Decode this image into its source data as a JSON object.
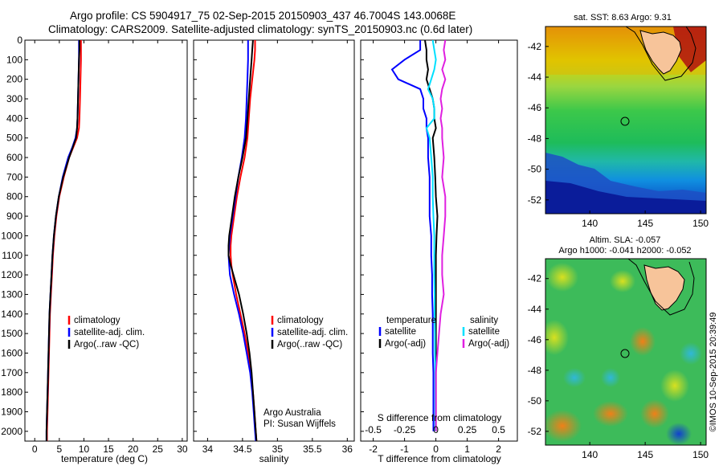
{
  "title_line1": "Argo profile: CS 5904917_75 02-Sep-2015 20150903_437 46.7004S 143.0068E",
  "title_line2": "Climatology: CARS2009. Satellite-adjusted climatology: synTS_20150903.nc (0.6d later)",
  "copyright": "©IMOS 10-Sep-2015 20:39:49",
  "colors": {
    "climatology": "#ff0000",
    "satellite": "#0000ff",
    "argo": "#000000",
    "cyan": "#00e0ff",
    "magenta": "#e020e0",
    "circle": "#000000"
  },
  "chart_data": [
    {
      "type": "line",
      "xlabel": "temperature (deg C)",
      "ylabel": "",
      "xlim": [
        -2,
        31
      ],
      "ylim": [
        2050,
        0
      ],
      "xticks": [
        "0",
        "5",
        "10",
        "15",
        "20",
        "25",
        "30"
      ],
      "xtick_values": [
        0,
        5,
        10,
        15,
        20,
        25,
        30
      ],
      "yticks": [
        "0",
        "100",
        "200",
        "300",
        "400",
        "500",
        "600",
        "700",
        "800",
        "900",
        "1000",
        "1100",
        "1200",
        "1300",
        "1400",
        "1500",
        "1600",
        "1700",
        "1800",
        "1900",
        "2000"
      ],
      "legend": [
        "climatology",
        "satellite-adj. clim.",
        "Argo(..raw -QC)"
      ],
      "depth": [
        0,
        50,
        100,
        200,
        300,
        400,
        450,
        500,
        550,
        600,
        700,
        800,
        900,
        1000,
        1100,
        1200,
        1300,
        1400,
        1500,
        1600,
        1700,
        1800,
        1900,
        2000,
        2050
      ],
      "series": [
        {
          "name": "climatology",
          "values": [
            9.4,
            9.4,
            9.4,
            9.3,
            9.2,
            9.1,
            9.0,
            8.6,
            7.8,
            7.0,
            5.9,
            5.0,
            4.4,
            4.0,
            3.7,
            3.5,
            3.3,
            3.1,
            3.0,
            2.9,
            2.8,
            2.7,
            2.6,
            2.5,
            2.5
          ]
        },
        {
          "name": "satellite-adj. clim.",
          "values": [
            9.0,
            9.0,
            9.0,
            8.9,
            8.8,
            8.7,
            8.6,
            8.3,
            7.6,
            6.8,
            5.7,
            4.9,
            4.3,
            3.9,
            3.6,
            3.4,
            3.2,
            3.0,
            2.9,
            2.8,
            2.7,
            2.6,
            2.5,
            2.4,
            2.4
          ]
        },
        {
          "name": "Argo(..raw -QC)",
          "values": [
            9.1,
            9.1,
            9.0,
            8.9,
            8.8,
            8.7,
            8.6,
            8.4,
            7.7,
            7.0,
            5.8,
            4.9,
            4.3,
            3.9,
            3.6,
            3.4,
            3.2,
            3.0,
            2.9,
            2.8,
            2.7,
            2.6,
            2.5,
            2.4,
            2.4
          ]
        }
      ]
    },
    {
      "type": "line",
      "xlabel": "salinity",
      "xlim": [
        33.8,
        36.1
      ],
      "ylim": [
        2050,
        0
      ],
      "xticks": [
        "34",
        "34.5",
        "35",
        "35.5",
        "36"
      ],
      "xtick_values": [
        34,
        34.5,
        35,
        35.5,
        36
      ],
      "legend": [
        "climatology",
        "satellite-adj. clim.",
        "Argo(..raw -QC)"
      ],
      "annotation": [
        "Argo Australia",
        "PI: Susan Wijffels"
      ],
      "depth": [
        0,
        50,
        100,
        200,
        300,
        400,
        500,
        600,
        700,
        800,
        900,
        1000,
        1050,
        1100,
        1150,
        1200,
        1300,
        1400,
        1500,
        1600,
        1700,
        1800,
        1900,
        2000,
        2050
      ],
      "series": [
        {
          "name": "climatology",
          "values": [
            34.68,
            34.68,
            34.67,
            34.64,
            34.61,
            34.59,
            34.57,
            34.53,
            34.47,
            34.42,
            34.38,
            34.34,
            34.33,
            34.33,
            34.34,
            34.36,
            34.41,
            34.47,
            34.53,
            34.58,
            34.62,
            34.65,
            34.67,
            34.69,
            34.7
          ]
        },
        {
          "name": "satellite-adj. clim.",
          "values": [
            34.58,
            34.58,
            34.58,
            34.57,
            34.56,
            34.55,
            34.53,
            34.49,
            34.44,
            34.4,
            34.36,
            34.32,
            34.31,
            34.3,
            34.31,
            34.32,
            34.38,
            34.45,
            34.51,
            34.56,
            34.61,
            34.64,
            34.66,
            34.68,
            34.69
          ]
        },
        {
          "name": "Argo(..raw -QC)",
          "values": [
            34.65,
            34.64,
            34.63,
            34.61,
            34.59,
            34.57,
            34.55,
            34.5,
            34.44,
            34.39,
            34.35,
            34.31,
            34.3,
            34.3,
            34.33,
            34.37,
            34.45,
            34.51,
            34.56,
            34.6,
            34.63,
            34.65,
            34.67,
            34.69,
            34.7
          ]
        }
      ]
    },
    {
      "type": "line",
      "xlabel": "T difference from climatology",
      "xlabel_top": "S difference from climatology",
      "xlim": [
        -2.4,
        2.6
      ],
      "ylim": [
        2050,
        0
      ],
      "xticks": [
        "-2",
        "-1",
        "0",
        "1",
        "2"
      ],
      "xtick_values": [
        -2,
        -1,
        0,
        1,
        2
      ],
      "s_ticks": [
        "-0.5",
        "-0.25",
        "0",
        "0.25",
        "0.5"
      ],
      "s_tick_values": [
        -2,
        -1,
        0,
        1,
        2
      ],
      "legend_left_title": "temperature",
      "legend_right_title": "salinity",
      "legend_left": [
        "satellite",
        "Argo(-adj)"
      ],
      "legend_right": [
        "satellite",
        "Argo(-adj)"
      ],
      "depth": [
        0,
        50,
        100,
        150,
        200,
        250,
        300,
        350,
        400,
        450,
        500,
        600,
        700,
        800,
        900,
        1000,
        1100,
        1200,
        1300,
        1400,
        1500,
        1600,
        1700,
        1800,
        1900,
        2000
      ],
      "series": [
        {
          "name": "temperature satellite",
          "values": [
            -0.5,
            -0.5,
            -1.0,
            -1.4,
            -1.2,
            -0.5,
            -0.4,
            -0.4,
            -0.3,
            -0.3,
            -0.25,
            -0.25,
            -0.2,
            -0.2,
            -0.2,
            -0.15,
            -0.15,
            -0.12,
            -0.12,
            -0.1,
            -0.1,
            -0.1,
            -0.08,
            -0.08,
            -0.08,
            -0.08
          ]
        },
        {
          "name": "temperature Argo(-adj)",
          "values": [
            -0.35,
            -0.3,
            -0.3,
            -0.25,
            -0.3,
            -0.2,
            -0.1,
            -0.05,
            -0.05,
            0.0,
            -0.1,
            -0.05,
            -0.02,
            0.0,
            0.05,
            0.02,
            0.0,
            0.0,
            0.0,
            0.0,
            0.0,
            0.0,
            0.0,
            0.0,
            0.0,
            0.0
          ]
        },
        {
          "name": "salinity satellite",
          "values": [
            -0.1,
            -0.05,
            0.0,
            -0.05,
            -0.15,
            -0.25,
            -0.1,
            -0.05,
            -0.05,
            -0.3,
            -0.2,
            -0.15,
            -0.1,
            -0.1,
            -0.08,
            -0.05,
            -0.05,
            -0.05,
            -0.04,
            -0.04,
            -0.03,
            -0.03,
            -0.02,
            -0.02,
            -0.02,
            -0.02
          ]
        },
        {
          "name": "salinity Argo(-adj)",
          "values": [
            0.3,
            0.25,
            0.3,
            0.2,
            0.3,
            0.2,
            0.15,
            0.2,
            0.15,
            0.2,
            0.2,
            0.25,
            0.2,
            0.3,
            0.3,
            0.25,
            0.2,
            0.2,
            0.25,
            0.15,
            0.1,
            0.05,
            0.0,
            0.0,
            0.0,
            0.0
          ]
        }
      ]
    },
    {
      "type": "heatmap",
      "title": "sat. SST: 8.63 Argo: 9.31",
      "xticks": [
        "140",
        "145",
        "150"
      ],
      "xtick_values": [
        140,
        145,
        150
      ],
      "yticks": [
        "-42",
        "-44",
        "-46",
        "-48",
        "-50",
        "-52"
      ],
      "ytick_values": [
        -42,
        -44,
        -46,
        -48,
        -50,
        -52
      ],
      "xlim": [
        136,
        150.5
      ],
      "ylim": [
        -52.9,
        -40.7
      ],
      "float_position": [
        143.0,
        -46.7
      ]
    },
    {
      "type": "heatmap",
      "title": "Altim. SLA: -0.057",
      "subtitle": "Argo h1000: -0.041 h2000: -0.052",
      "xticks": [
        "140",
        "145",
        "150"
      ],
      "xtick_values": [
        140,
        145,
        150
      ],
      "yticks": [
        "-42",
        "-44",
        "-46",
        "-48",
        "-50",
        "-52"
      ],
      "ytick_values": [
        -42,
        -44,
        -46,
        -48,
        -50,
        -52
      ],
      "xlim": [
        136,
        150.5
      ],
      "ylim": [
        -52.9,
        -40.7
      ],
      "float_position": [
        143.0,
        -46.7
      ]
    }
  ]
}
